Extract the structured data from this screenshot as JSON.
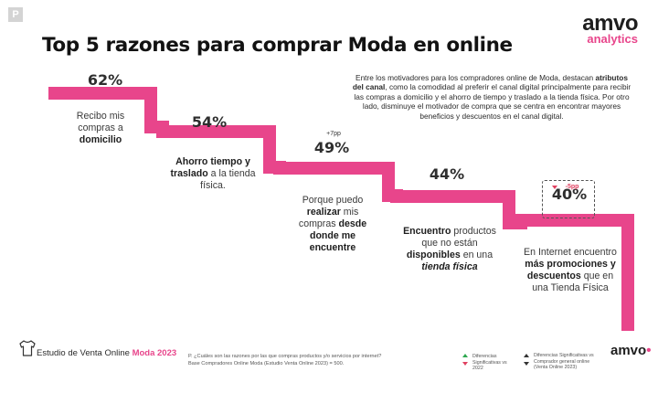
{
  "brand": {
    "corner_mark": "P",
    "logo_main": "amvo",
    "logo_sub": "analytics",
    "accent_color": "#e8458b",
    "footer_logo": "amvo"
  },
  "header": {
    "title": "Top 5 razones para comprar Moda en online"
  },
  "intro": {
    "part1": "Entre los motivadores para los compradores online de Moda, destacan ",
    "bold": "atributos del canal",
    "part2": ", como la comodidad al preferir el canal digital principalmente para recibir las compras a domicilio y el ahorro de tiempo y traslado a la tienda física. Por otro lado, disminuye el motivador de compra que se centra en encontrar mayores beneficios y descuentos en el canal digital."
  },
  "chart_data": {
    "type": "bar",
    "title": "Top 5 razones para comprar Moda en online",
    "unit": "%",
    "categories": [
      "Recibo mis compras a domicilio",
      "Ahorro tiempo y traslado a la tienda física",
      "Porque puedo realizar mis compras desde donde me encuentre",
      "Encuentro productos que no están disponibles en una tienda física",
      "En Internet encuentro más promociones y descuentos que en una Tienda Física"
    ],
    "values": [
      62,
      54,
      49,
      44,
      40
    ],
    "value_labels": [
      "62%",
      "54%",
      "49%",
      "44%",
      "40%"
    ],
    "changes": [
      {
        "index": 2,
        "label": "+7pp",
        "direction": "up"
      },
      {
        "index": 4,
        "label": "-5pp",
        "direction": "down"
      }
    ]
  },
  "reasons": [
    {
      "t1": "Recibo mis compras a ",
      "b1": "domicilio",
      "t2": "",
      "b2": "",
      "t3": ""
    },
    {
      "t1": "",
      "b1": "Ahorro tiempo y traslado",
      "t2": " a la tienda física.",
      "b2": "",
      "t3": ""
    },
    {
      "t1": "Porque puedo ",
      "b1": "realizar",
      "t2": " mis compras ",
      "b2": "desde donde me encuentre",
      "t3": ""
    },
    {
      "t1": "",
      "b1": "Encuentro",
      "t2": " productos que no están ",
      "b2": "disponibles",
      "t3": " en una "
    },
    {
      "t1": "En Internet encuentro ",
      "b1": "más promociones y descuentos",
      "t2": " que en una Tienda Física",
      "b2": "",
      "t3": ""
    }
  ],
  "reason4_extra": "tienda física",
  "footer": {
    "study_prefix": "Estudio de Venta Online ",
    "study_accent": "Moda 2023",
    "question": "P. ¿Cuáles son las razones por las que compras productos y/o servicios por internet?",
    "base": "Base Compradores Online Moda (Estudio Venta Online 2023) = 500.",
    "legend_a": "Diferencias Significativas vs 2022",
    "legend_b": "Diferencias Significativas vs Comprador general online (Venta Online 2023)"
  }
}
